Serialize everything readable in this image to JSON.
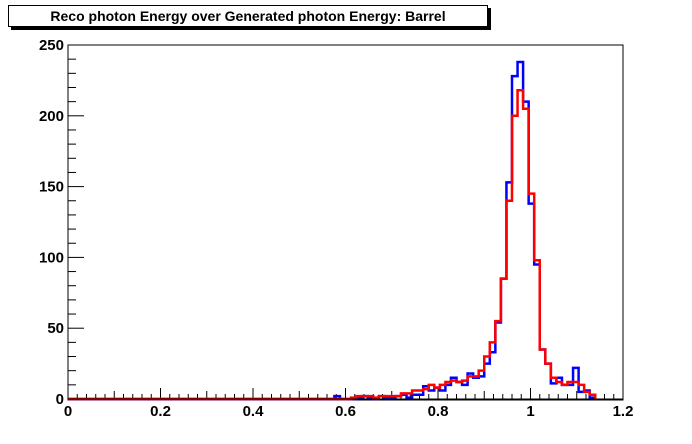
{
  "chart_data": {
    "type": "line",
    "title": "Reco photon Energy over Generated photon Energy: Barrel",
    "xlabel": "",
    "ylabel": "",
    "xlim": [
      0,
      1.2
    ],
    "ylim": [
      0,
      250
    ],
    "x_ticks": [
      "0",
      "0.2",
      "0.4",
      "0.6",
      "0.8",
      "1",
      "1.2"
    ],
    "y_ticks": [
      "0",
      "50",
      "100",
      "150",
      "200",
      "250"
    ],
    "grid": false,
    "bin_width": 0.012,
    "x_start": 0.0,
    "series": [
      {
        "color": "#0000ff",
        "values": [
          0,
          0,
          0,
          0,
          0,
          0,
          0,
          0,
          0,
          0,
          0,
          0,
          0,
          0,
          0,
          0,
          0,
          0,
          0,
          0,
          0,
          0,
          0,
          0,
          0,
          0,
          0,
          0,
          0,
          0,
          0,
          0,
          0,
          0,
          0,
          0,
          0,
          0,
          0,
          0,
          0,
          0,
          0,
          0,
          0,
          0,
          0,
          0,
          2,
          0,
          0,
          0,
          1,
          2,
          1,
          0,
          2,
          1,
          1,
          2,
          3,
          1,
          3,
          3,
          9,
          6,
          8,
          6,
          10,
          15,
          12,
          10,
          18,
          15,
          16,
          25,
          33,
          54,
          85,
          153,
          228,
          238,
          210,
          138,
          95,
          35,
          25,
          11,
          15,
          10,
          10,
          22,
          5,
          6,
          1
        ]
      },
      {
        "color": "#ff0000",
        "values": [
          0,
          0,
          0,
          0,
          0,
          0,
          0,
          0,
          0,
          0,
          0,
          0,
          0,
          0,
          0,
          0,
          0,
          0,
          0,
          0,
          0,
          0,
          0,
          0,
          0,
          0,
          0,
          0,
          0,
          0,
          0,
          0,
          0,
          0,
          0,
          0,
          0,
          0,
          0,
          0,
          0,
          0,
          0,
          0,
          0,
          0,
          0,
          0,
          0,
          0,
          0,
          1,
          2,
          2,
          2,
          1,
          2,
          2,
          2,
          2,
          4,
          4,
          6,
          6,
          7,
          10,
          8,
          10,
          12,
          13,
          12,
          13,
          16,
          16,
          20,
          30,
          40,
          55,
          85,
          140,
          200,
          218,
          205,
          145,
          98,
          35,
          25,
          15,
          12,
          10,
          12,
          12,
          10,
          5,
          3
        ]
      }
    ]
  }
}
